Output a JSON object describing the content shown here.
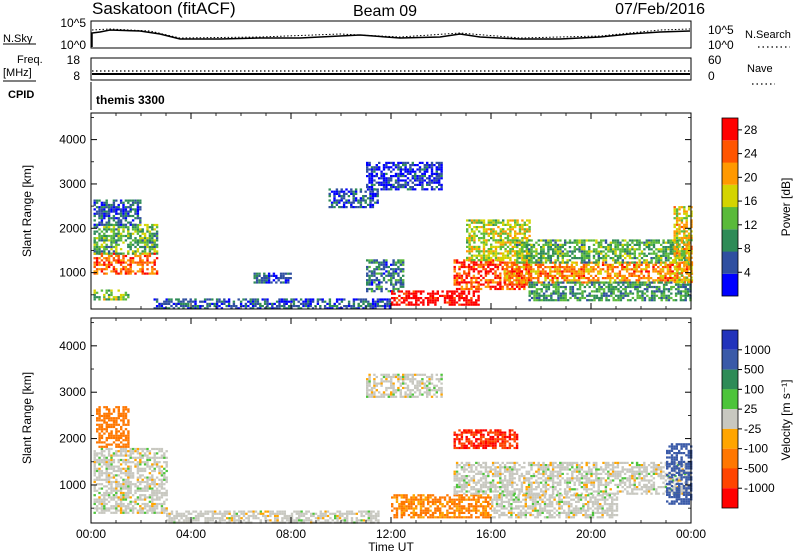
{
  "header": {
    "station": "Saskatoon (fitACF)",
    "beam": "Beam 09",
    "date": "07/Feb/2016"
  },
  "top_panels": {
    "nsky_label": "N.Sky",
    "nsky_tick_top": "10^5",
    "nsky_tick_bottom": "10^0",
    "nsearch_label": "N.Search",
    "nsearch_tick_top": "10^5",
    "nsearch_tick_bottom": "10^0",
    "freq_label": "Freq.",
    "freq_unit": "[MHz]",
    "freq_tick_top": "18",
    "freq_tick_bottom": "8",
    "nave_label": "Nave",
    "nave_tick_top": "60",
    "nave_tick_bottom": "0",
    "cpid_label": "CPID",
    "cpid_value": "themis 3300"
  },
  "colors": {
    "power_scale": [
      "#0000ff",
      "#2f4fa0",
      "#2e8b57",
      "#5aba3a",
      "#d4d400",
      "#ff9900",
      "#ff5500",
      "#ff0000"
    ],
    "velocity_scale": [
      "#2233bb",
      "#3a5aa8",
      "#2e8b57",
      "#4dc43a",
      "#c8c8c0",
      "#ffa500",
      "#ff7700",
      "#ff4400",
      "#ff0000"
    ],
    "scatter_gray": "#c8c8c0"
  },
  "chart_data": [
    {
      "type": "heatmap",
      "title": "",
      "xlabel": "",
      "ylabel": "Slant Range [km]",
      "x_ticks": [
        "00:00",
        "04:00",
        "08:00",
        "12:00",
        "16:00",
        "20:00",
        "00:00"
      ],
      "y_ticks": [
        "1000",
        "2000",
        "3000",
        "4000"
      ],
      "xlim_hours": [
        0,
        24
      ],
      "ylim_km": [
        180,
        4600
      ],
      "colorbar": {
        "label": "Power [dB]",
        "ticks": [
          "4",
          "8",
          "12",
          "16",
          "20",
          "24",
          "28"
        ],
        "range": [
          0,
          30
        ]
      },
      "regions": [
        {
          "t": [
            0.1,
            2.6
          ],
          "r": [
            1000,
            1450
          ],
          "value": 24
        },
        {
          "t": [
            0.1,
            2.6
          ],
          "r": [
            1450,
            2100
          ],
          "value": 12
        },
        {
          "t": [
            0.1,
            2.0
          ],
          "r": [
            2100,
            2650
          ],
          "value": 6
        },
        {
          "t": [
            0.1,
            1.5
          ],
          "r": [
            420,
            620
          ],
          "value": 14
        },
        {
          "t": [
            2.5,
            12.0
          ],
          "r": [
            180,
            420
          ],
          "value": 5
        },
        {
          "t": [
            6.5,
            8.0
          ],
          "r": [
            800,
            1000
          ],
          "value": 6
        },
        {
          "t": [
            9.5,
            11.5
          ],
          "r": [
            2500,
            2900
          ],
          "value": 5
        },
        {
          "t": [
            11.0,
            14.0
          ],
          "r": [
            2900,
            3500
          ],
          "value": 4
        },
        {
          "t": [
            11.0,
            12.5
          ],
          "r": [
            600,
            1300
          ],
          "value": 8
        },
        {
          "t": [
            12.0,
            15.5
          ],
          "r": [
            300,
            600
          ],
          "value": 30
        },
        {
          "t": [
            14.5,
            17.5
          ],
          "r": [
            650,
            1300
          ],
          "value": 26
        },
        {
          "t": [
            15.0,
            17.5
          ],
          "r": [
            1300,
            2200
          ],
          "value": 16
        },
        {
          "t": [
            16.5,
            24.0
          ],
          "r": [
            800,
            1250
          ],
          "value": 22
        },
        {
          "t": [
            17.0,
            24.0
          ],
          "r": [
            1250,
            1750
          ],
          "value": 12
        },
        {
          "t": [
            17.5,
            24.0
          ],
          "r": [
            400,
            800
          ],
          "value": 10
        },
        {
          "t": [
            23.3,
            24.0
          ],
          "r": [
            800,
            2500
          ],
          "value": 18
        }
      ]
    },
    {
      "type": "heatmap",
      "title": "",
      "xlabel": "Time UT",
      "ylabel": "Slant Range [km]",
      "x_ticks": [
        "00:00",
        "04:00",
        "08:00",
        "12:00",
        "16:00",
        "20:00",
        "00:00"
      ],
      "y_ticks": [
        "1000",
        "2000",
        "3000",
        "4000"
      ],
      "xlim_hours": [
        0,
        24
      ],
      "ylim_km": [
        180,
        4600
      ],
      "colorbar": {
        "label": "Velocity [m s⁻¹]",
        "ticks": [
          "1000",
          "500",
          "100",
          "25",
          "-25",
          "-100",
          "-500",
          "-1000"
        ],
        "range": [
          -1000,
          1000
        ]
      },
      "regions": [
        {
          "t": [
            0.1,
            3.0
          ],
          "r": [
            400,
            1800
          ],
          "value": 0
        },
        {
          "t": [
            0.2,
            1.5
          ],
          "r": [
            1800,
            2700
          ],
          "value": -200
        },
        {
          "t": [
            3.0,
            11.5
          ],
          "r": [
            180,
            450
          ],
          "value": 0
        },
        {
          "t": [
            11.0,
            14.0
          ],
          "r": [
            2900,
            3400
          ],
          "value": 0
        },
        {
          "t": [
            12.0,
            16.0
          ],
          "r": [
            300,
            800
          ],
          "value": -150
        },
        {
          "t": [
            14.5,
            17.0
          ],
          "r": [
            1800,
            2200
          ],
          "value": -500
        },
        {
          "t": [
            14.5,
            24.0
          ],
          "r": [
            800,
            1500
          ],
          "value": 0
        },
        {
          "t": [
            16.0,
            21.0
          ],
          "r": [
            300,
            800
          ],
          "value": 0
        },
        {
          "t": [
            23.0,
            24.0
          ],
          "r": [
            600,
            1900
          ],
          "value": 200
        }
      ]
    }
  ]
}
